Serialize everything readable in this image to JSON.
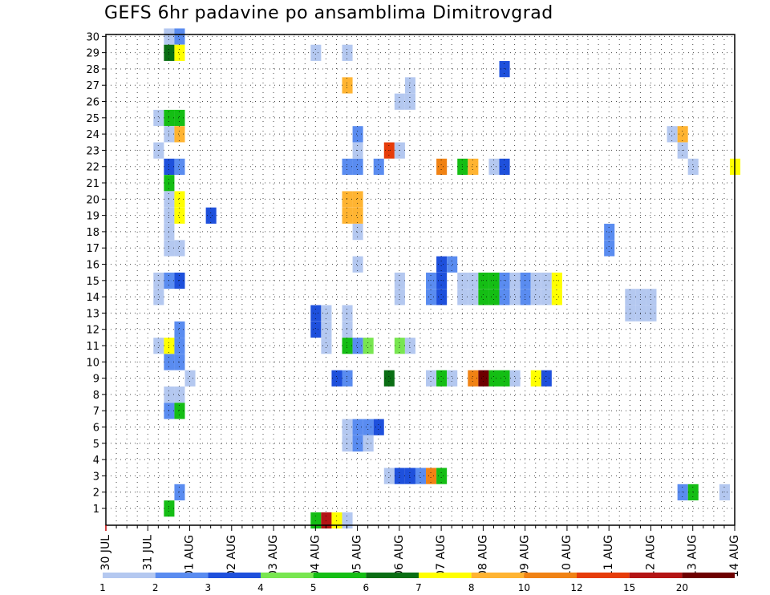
{
  "chart_data": {
    "type": "heatmap",
    "title": "GEFS 6hr padavine po ansamblima Dimitrovgrad",
    "y_categories": [
      "1",
      "2",
      "3",
      "4",
      "5",
      "6",
      "7",
      "8",
      "9",
      "10",
      "11",
      "12",
      "13",
      "14",
      "15",
      "16",
      "17",
      "18",
      "19",
      "20",
      "21",
      "22",
      "23",
      "24",
      "25",
      "26",
      "27",
      "28",
      "29",
      "30"
    ],
    "x_tick_labels": [
      "30 JUL",
      "31 JUL",
      "01 AUG",
      "02 AUG",
      "03 AUG",
      "04 AUG",
      "05 AUG",
      "06 AUG",
      "07 AUG",
      "08 AUG",
      "09 AUG",
      "10 AUG",
      "11 AUG",
      "12 AUG",
      "13 AUG",
      "14 AUG"
    ],
    "x_range": [
      0,
      60
    ],
    "x_unit": "6-hour steps starting 30 JUL 00Z",
    "grid": true,
    "legend_position": "bottom",
    "legend": {
      "labels": [
        "1",
        "2",
        "3",
        "4",
        "5",
        "6",
        "7",
        "8",
        "10",
        "12",
        "15",
        "20"
      ],
      "colors": [
        "#b4c8f0",
        "#5a8cf0",
        "#1e50dc",
        "#78e650",
        "#14be14",
        "#0a6e14",
        "#ffff00",
        "#ffb432",
        "#f08214",
        "#e63c0a",
        "#b41414",
        "#6e0000"
      ]
    },
    "cells": [
      {
        "m": 30,
        "t": [
          [
            6,
            1
          ],
          [
            7,
            2
          ]
        ]
      },
      {
        "m": 29,
        "t": [
          [
            6,
            6
          ],
          [
            7,
            7
          ],
          [
            20,
            1
          ],
          [
            23,
            1
          ]
        ]
      },
      {
        "m": 28,
        "t": [
          [
            38,
            3
          ]
        ]
      },
      {
        "m": 27,
        "t": [
          [
            23,
            8
          ],
          [
            29,
            1
          ]
        ]
      },
      {
        "m": 26,
        "t": [
          [
            28,
            1
          ],
          [
            29,
            1
          ]
        ]
      },
      {
        "m": 25,
        "t": [
          [
            5,
            1
          ],
          [
            6,
            5
          ],
          [
            7,
            5
          ]
        ]
      },
      {
        "m": 24,
        "t": [
          [
            6,
            1
          ],
          [
            7,
            8
          ],
          [
            24,
            2
          ],
          [
            54,
            1
          ],
          [
            55,
            8
          ]
        ]
      },
      {
        "m": 23,
        "t": [
          [
            5,
            1
          ],
          [
            24,
            1
          ],
          [
            27,
            12
          ],
          [
            28,
            1
          ],
          [
            55,
            1
          ]
        ]
      },
      {
        "m": 22,
        "t": [
          [
            6,
            3
          ],
          [
            7,
            2
          ],
          [
            23,
            2
          ],
          [
            24,
            2
          ],
          [
            26,
            2
          ],
          [
            32,
            10
          ],
          [
            34,
            5
          ],
          [
            35,
            9
          ],
          [
            37,
            1
          ],
          [
            38,
            3
          ],
          [
            56,
            1
          ],
          [
            60,
            7
          ]
        ]
      },
      {
        "m": 21,
        "t": [
          [
            6,
            5
          ]
        ]
      },
      {
        "m": 20,
        "t": [
          [
            6,
            1
          ],
          [
            7,
            7
          ],
          [
            23,
            9
          ],
          [
            24,
            9
          ]
        ]
      },
      {
        "m": 19,
        "t": [
          [
            6,
            1
          ],
          [
            7,
            7
          ],
          [
            10,
            3
          ],
          [
            23,
            9
          ],
          [
            24,
            9
          ]
        ]
      },
      {
        "m": 18,
        "t": [
          [
            6,
            1
          ],
          [
            24,
            1
          ],
          [
            48,
            2
          ]
        ]
      },
      {
        "m": 17,
        "t": [
          [
            6,
            1
          ],
          [
            7,
            1
          ],
          [
            48,
            2
          ]
        ]
      },
      {
        "m": 16,
        "t": [
          [
            24,
            1
          ],
          [
            32,
            3
          ],
          [
            33,
            2
          ]
        ]
      },
      {
        "m": 15,
        "t": [
          [
            5,
            1
          ],
          [
            6,
            2
          ],
          [
            7,
            3
          ],
          [
            28,
            1
          ],
          [
            31,
            2
          ],
          [
            32,
            3
          ],
          [
            34,
            1
          ],
          [
            35,
            1
          ],
          [
            36,
            5
          ],
          [
            37,
            5
          ],
          [
            38,
            2
          ],
          [
            39,
            1
          ],
          [
            40,
            2
          ],
          [
            41,
            1
          ],
          [
            42,
            1
          ],
          [
            43,
            7
          ]
        ]
      },
      {
        "m": 14,
        "t": [
          [
            5,
            1
          ],
          [
            28,
            1
          ],
          [
            31,
            2
          ],
          [
            32,
            3
          ],
          [
            34,
            1
          ],
          [
            35,
            1
          ],
          [
            36,
            5
          ],
          [
            37,
            5
          ],
          [
            38,
            2
          ],
          [
            39,
            1
          ],
          [
            40,
            2
          ],
          [
            41,
            1
          ],
          [
            42,
            1
          ],
          [
            43,
            7
          ],
          [
            50,
            1
          ],
          [
            51,
            1
          ],
          [
            52,
            1
          ]
        ]
      },
      {
        "m": 13,
        "t": [
          [
            20,
            3
          ],
          [
            21,
            1
          ],
          [
            23,
            1
          ],
          [
            50,
            1
          ],
          [
            51,
            1
          ],
          [
            52,
            1
          ]
        ]
      },
      {
        "m": 12,
        "t": [
          [
            7,
            2
          ],
          [
            20,
            3
          ],
          [
            21,
            1
          ],
          [
            23,
            1
          ]
        ]
      },
      {
        "m": 11,
        "t": [
          [
            5,
            1
          ],
          [
            6,
            7
          ],
          [
            7,
            2
          ],
          [
            21,
            1
          ],
          [
            23,
            5
          ],
          [
            24,
            2
          ],
          [
            25,
            4
          ],
          [
            28,
            4
          ],
          [
            29,
            1
          ]
        ]
      },
      {
        "m": 10,
        "t": [
          [
            6,
            2
          ],
          [
            7,
            2
          ]
        ]
      },
      {
        "m": 9,
        "t": [
          [
            8,
            1
          ],
          [
            22,
            3
          ],
          [
            23,
            2
          ],
          [
            27,
            6
          ],
          [
            31,
            1
          ],
          [
            32,
            5
          ],
          [
            33,
            1
          ],
          [
            35,
            10
          ],
          [
            36,
            20
          ],
          [
            37,
            5
          ],
          [
            38,
            5
          ],
          [
            39,
            1
          ],
          [
            41,
            7
          ],
          [
            42,
            3
          ]
        ]
      },
      {
        "m": 8,
        "t": [
          [
            6,
            1
          ],
          [
            7,
            1
          ]
        ]
      },
      {
        "m": 7,
        "t": [
          [
            6,
            2
          ],
          [
            7,
            5
          ]
        ]
      },
      {
        "m": 6,
        "t": [
          [
            23,
            1
          ],
          [
            24,
            2
          ],
          [
            25,
            2
          ],
          [
            26,
            3
          ]
        ]
      },
      {
        "m": 5,
        "t": [
          [
            23,
            1
          ],
          [
            24,
            2
          ],
          [
            25,
            1
          ]
        ]
      },
      {
        "m": 4,
        "t": []
      },
      {
        "m": 3,
        "t": [
          [
            27,
            1
          ],
          [
            28,
            3
          ],
          [
            29,
            3
          ],
          [
            30,
            2
          ],
          [
            31,
            10
          ],
          [
            32,
            5
          ]
        ]
      },
      {
        "m": 2,
        "t": [
          [
            7,
            2
          ],
          [
            55,
            2
          ],
          [
            56,
            5
          ],
          [
            59,
            1
          ]
        ]
      },
      {
        "m": 1,
        "t": [
          [
            6,
            5
          ]
        ]
      },
      {
        "m": 0,
        "t": [
          [
            20,
            5
          ],
          [
            21,
            15
          ],
          [
            22,
            7
          ],
          [
            23,
            1
          ]
        ]
      }
    ]
  }
}
